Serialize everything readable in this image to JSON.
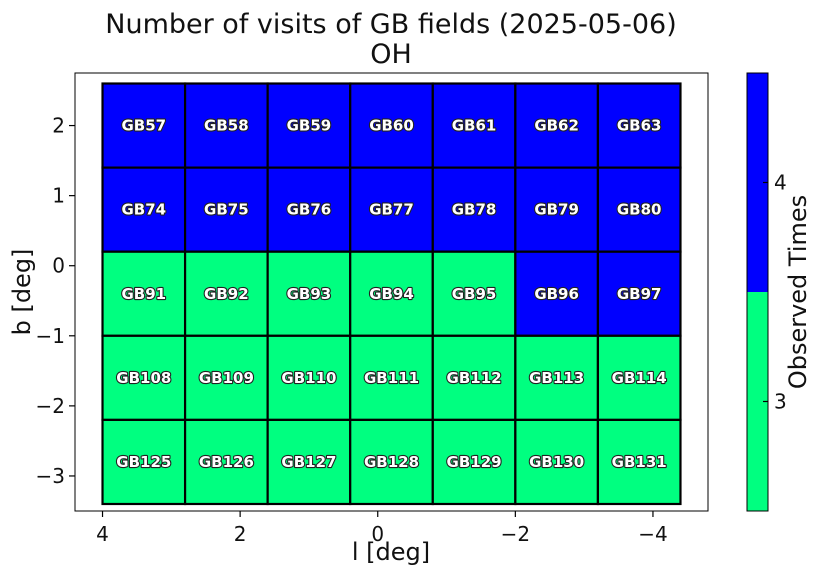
{
  "chart_data": {
    "type": "heatmap",
    "title": "Number of visits of GB fields (2025-05-06)",
    "subtitle": "OH",
    "xlabel": "l [deg]",
    "ylabel": "b [deg]",
    "xlim": [
      4.4,
      -4.8
    ],
    "ylim": [
      -3.5,
      2.75
    ],
    "x_inverted": true,
    "grid": false,
    "xticks": [
      4,
      2,
      0,
      -2,
      -4
    ],
    "xtick_labels": [
      "4",
      "2",
      "0",
      "−2",
      "−4"
    ],
    "yticks": [
      2,
      1,
      0,
      -1,
      -2,
      -3
    ],
    "ytick_labels": [
      "2",
      "1",
      "0",
      "−1",
      "−2",
      "−3"
    ],
    "column_centers_l": [
      3.4,
      2.2,
      1.0,
      -0.2,
      -1.4,
      -2.6,
      -3.8
    ],
    "row_centers_b": [
      2.0,
      0.8,
      -0.4,
      -1.6,
      -2.8
    ],
    "cell_width_deg": 1.2,
    "cell_height_deg": 1.2,
    "fields": [
      [
        "GB57",
        "GB58",
        "GB59",
        "GB60",
        "GB61",
        "GB62",
        "GB63"
      ],
      [
        "GB74",
        "GB75",
        "GB76",
        "GB77",
        "GB78",
        "GB79",
        "GB80"
      ],
      [
        "GB91",
        "GB92",
        "GB93",
        "GB94",
        "GB95",
        "GB96",
        "GB97"
      ],
      [
        "GB108",
        "GB109",
        "GB110",
        "GB111",
        "GB112",
        "GB113",
        "GB114"
      ],
      [
        "GB125",
        "GB126",
        "GB127",
        "GB128",
        "GB129",
        "GB130",
        "GB131"
      ]
    ],
    "values": [
      [
        4,
        4,
        4,
        4,
        4,
        4,
        4
      ],
      [
        4,
        4,
        4,
        4,
        4,
        4,
        4
      ],
      [
        3,
        3,
        3,
        3,
        3,
        4,
        4
      ],
      [
        3,
        3,
        3,
        3,
        3,
        3,
        3
      ],
      [
        3,
        3,
        3,
        3,
        3,
        3,
        3
      ]
    ],
    "colorbar": {
      "label": "Observed Times",
      "levels": [
        3,
        4
      ],
      "tick_labels": [
        "3",
        "4"
      ],
      "colors": [
        "#00ff80",
        "#0000ff"
      ]
    }
  }
}
